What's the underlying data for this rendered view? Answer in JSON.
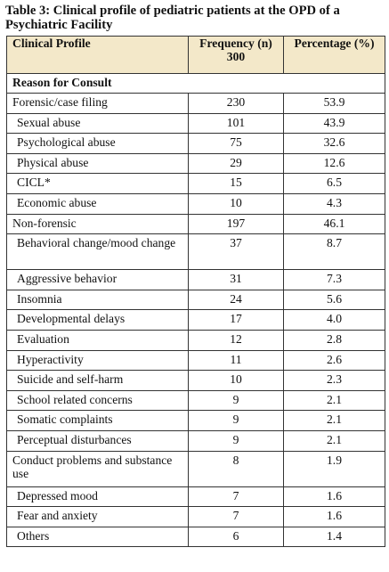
{
  "caption": "Table 3: Clinical profile of pediatric patients at the OPD of a Psychiatric Facility",
  "header": {
    "profile": "Clinical Profile",
    "frequency": "Frequency (n) 300",
    "percentage": "Percentage (%)"
  },
  "section_title": "Reason for Consult",
  "rows": [
    {
      "label": "Forensic/case filing",
      "n": "230",
      "pct": "53.9",
      "level": 0
    },
    {
      "label": "Sexual abuse",
      "n": "101",
      "pct": "43.9",
      "level": 1
    },
    {
      "label": "Psychological abuse",
      "n": "75",
      "pct": "32.6",
      "level": 1
    },
    {
      "label": "Physical abuse",
      "n": "29",
      "pct": "12.6",
      "level": 1
    },
    {
      "label": "CICL*",
      "n": "15",
      "pct": "6.5",
      "level": 1
    },
    {
      "label": "Economic abuse",
      "n": "10",
      "pct": "4.3",
      "level": 1
    },
    {
      "label": "Non-forensic",
      "n": "197",
      "pct": "46.1",
      "level": 0
    },
    {
      "label": "Behavioral change/mood change",
      "n": "37",
      "pct": "8.7",
      "level": 1,
      "tall": true
    },
    {
      "label": "Aggressive behavior",
      "n": "31",
      "pct": "7.3",
      "level": 1
    },
    {
      "label": "Insomnia",
      "n": "24",
      "pct": "5.6",
      "level": 1
    },
    {
      "label": "Developmental delays",
      "n": "17",
      "pct": "4.0",
      "level": 1
    },
    {
      "label": "Evaluation",
      "n": "12",
      "pct": "2.8",
      "level": 1
    },
    {
      "label": "Hyperactivity",
      "n": "11",
      "pct": "2.6",
      "level": 1
    },
    {
      "label": "Suicide and self-harm",
      "n": "10",
      "pct": "2.3",
      "level": 1
    },
    {
      "label": "School related concerns",
      "n": "9",
      "pct": "2.1",
      "level": 1
    },
    {
      "label": "Somatic complaints",
      "n": "9",
      "pct": "2.1",
      "level": 1
    },
    {
      "label": "Perceptual disturbances",
      "n": "9",
      "pct": "2.1",
      "level": 1
    },
    {
      "label": "Conduct problems and substance use",
      "n": "8",
      "pct": "1.9",
      "level": 0,
      "tall": true
    },
    {
      "label": "Depressed mood",
      "n": "7",
      "pct": "1.6",
      "level": 1
    },
    {
      "label": "Fear and anxiety",
      "n": "7",
      "pct": "1.6",
      "level": 1
    },
    {
      "label": "Others",
      "n": "6",
      "pct": "1.4",
      "level": 1
    }
  ],
  "colors": {
    "header_bg": "#f3e8c9",
    "border": "#333333"
  }
}
